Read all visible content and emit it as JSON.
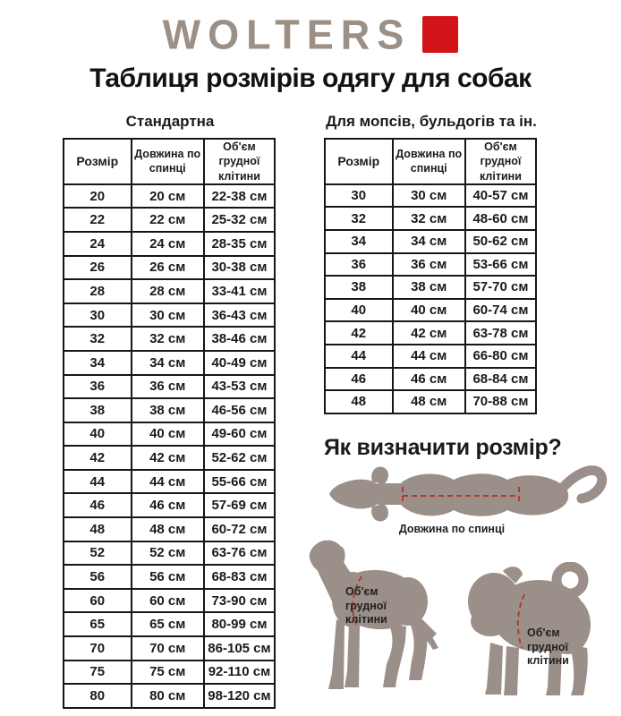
{
  "logo": {
    "text": "WOLTERS",
    "accent_color": "#d21418"
  },
  "title": "Таблиця розмірів одягу для собак",
  "tables": {
    "standard": {
      "title": "Стандартна",
      "headers": [
        "Розмір",
        "Довжина по спинці",
        "Об'єм грудної клітини"
      ],
      "rows": [
        [
          "20",
          "20 см",
          "22-38 см"
        ],
        [
          "22",
          "22 см",
          "25-32 см"
        ],
        [
          "24",
          "24 см",
          "28-35 см"
        ],
        [
          "26",
          "26 см",
          "30-38 см"
        ],
        [
          "28",
          "28 см",
          "33-41 см"
        ],
        [
          "30",
          "30 см",
          "36-43 см"
        ],
        [
          "32",
          "32 см",
          "38-46 см"
        ],
        [
          "34",
          "34 см",
          "40-49 см"
        ],
        [
          "36",
          "36 см",
          "43-53 см"
        ],
        [
          "38",
          "38 см",
          "46-56 см"
        ],
        [
          "40",
          "40 см",
          "49-60 см"
        ],
        [
          "42",
          "42 см",
          "52-62 см"
        ],
        [
          "44",
          "44 см",
          "55-66 см"
        ],
        [
          "46",
          "46 см",
          "57-69 см"
        ],
        [
          "48",
          "48 см",
          "60-72 см"
        ],
        [
          "52",
          "52 см",
          "63-76 см"
        ],
        [
          "56",
          "56 см",
          "68-83 см"
        ],
        [
          "60",
          "60 см",
          "73-90 см"
        ],
        [
          "65",
          "65 см",
          "80-99 см"
        ],
        [
          "70",
          "70 см",
          "86-105 см"
        ],
        [
          "75",
          "75 см",
          "92-110 см"
        ],
        [
          "80",
          "80 см",
          "98-120 см"
        ]
      ]
    },
    "pugs": {
      "title": "Для мопсів, бульдогів та ін.",
      "headers": [
        "Розмір",
        "Довжина по спинці",
        "Об'єм грудної клітини"
      ],
      "rows": [
        [
          "30",
          "30 см",
          "40-57 см"
        ],
        [
          "32",
          "32 см",
          "48-60 см"
        ],
        [
          "34",
          "34 см",
          "50-62 см"
        ],
        [
          "36",
          "36 см",
          "53-66 см"
        ],
        [
          "38",
          "38 см",
          "57-70 см"
        ],
        [
          "40",
          "40 см",
          "60-74 см"
        ],
        [
          "42",
          "42 см",
          "63-78 см"
        ],
        [
          "44",
          "44 см",
          "66-80 см"
        ],
        [
          "46",
          "46 см",
          "68-84 см"
        ],
        [
          "48",
          "48 см",
          "70-88 см"
        ]
      ]
    }
  },
  "guide": {
    "title": "Як визначити розмір?",
    "back_length_label": "Довжина по спинці",
    "chest_label_lines": [
      "Об'єм",
      "грудної",
      "клітини"
    ]
  },
  "colors": {
    "logo_taupe": "#9c9086",
    "accent_red": "#d21418",
    "silhouette": "#9b9089",
    "measure_dash_red": "#b03a33",
    "text": "#1b1b1b"
  }
}
